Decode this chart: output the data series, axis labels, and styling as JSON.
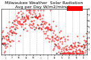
{
  "title": "Milwaukee Weather  Solar Radiation\nAvg per Day W/m2/minute",
  "title_fontsize": 4.5,
  "background_color": "#ffffff",
  "plot_bg_color": "#ffffff",
  "grid_color": "#aaaaaa",
  "dot_color_red": "#ff0000",
  "dot_color_black": "#000000",
  "legend_box_color": "#ff0000",
  "ylim": [
    0,
    8
  ],
  "yticks": [
    1,
    2,
    3,
    4,
    5,
    6,
    7,
    8
  ],
  "ytick_labels": [
    "1",
    "2",
    "3",
    "4",
    "5",
    "6",
    "7",
    "8"
  ],
  "n_points": 365,
  "seed": 42
}
